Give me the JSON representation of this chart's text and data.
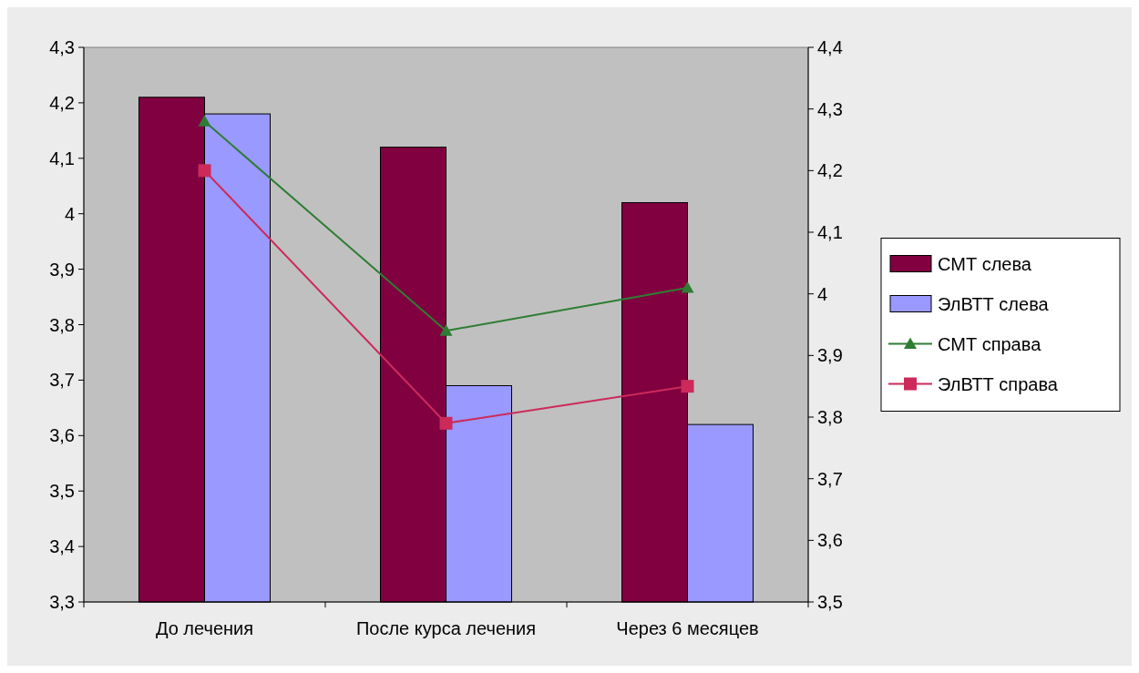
{
  "chart_data": {
    "type": "bar",
    "categories": [
      "До лечения",
      "После курса лечения",
      "Через 6 месяцев"
    ],
    "series": [
      {
        "name": "СМТ слева",
        "color": "#800040",
        "values": [
          4.21,
          4.12,
          4.02
        ]
      },
      {
        "name": "ЭлВТТ слева",
        "color": "#9999ff",
        "values": [
          4.18,
          3.69,
          3.62
        ]
      },
      {
        "name": "СМТ справа",
        "type": "line",
        "axis": "y2",
        "marker": "triangle",
        "color": "#2e7d32",
        "values": [
          4.28,
          3.94,
          4.01
        ]
      },
      {
        "name": "ЭлВТТ справа",
        "type": "line",
        "axis": "y2",
        "marker": "square",
        "color": "#cc2a5a",
        "values": [
          4.2,
          3.79,
          3.85
        ]
      }
    ],
    "ylim": [
      3.3,
      4.3
    ],
    "yticks": [
      {
        "value": 3.3,
        "label": "3,3"
      },
      {
        "value": 3.4,
        "label": "3,4"
      },
      {
        "value": 3.5,
        "label": "3,5"
      },
      {
        "value": 3.6,
        "label": "3,6"
      },
      {
        "value": 3.7,
        "label": "3,7"
      },
      {
        "value": 3.8,
        "label": "3,8"
      },
      {
        "value": 3.9,
        "label": "3,9"
      },
      {
        "value": 4,
        "label": "4"
      },
      {
        "value": 4.1,
        "label": "4,1"
      },
      {
        "value": 4.2,
        "label": "4,2"
      },
      {
        "value": 4.3,
        "label": "4,3"
      }
    ],
    "y2lim": [
      3.5,
      4.4
    ],
    "y2ticks": [
      {
        "value": 3.5,
        "label": "3,5"
      },
      {
        "value": 3.6,
        "label": "3,6"
      },
      {
        "value": 3.7,
        "label": "3,7"
      },
      {
        "value": 3.8,
        "label": "3,8"
      },
      {
        "value": 3.9,
        "label": "3,9"
      },
      {
        "value": 4,
        "label": "4"
      },
      {
        "value": 4.1,
        "label": "4,1"
      },
      {
        "value": 4.2,
        "label": "4,2"
      },
      {
        "value": 4.3,
        "label": "4,3"
      },
      {
        "value": 4.4,
        "label": "4,4"
      }
    ],
    "legend": "right",
    "grid": false,
    "line_style": "solid"
  }
}
